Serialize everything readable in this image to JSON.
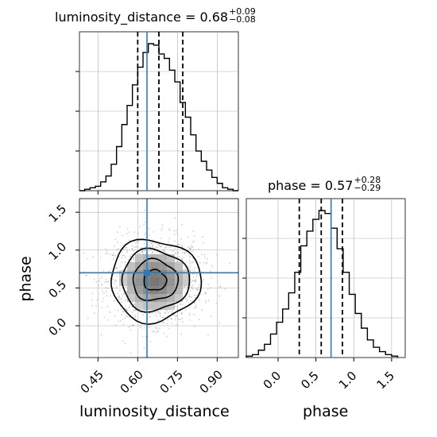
{
  "chart_data": [
    {
      "type": "histogram",
      "panel": "luminosity_distance marginal",
      "title": {
        "param": "luminosity_distance",
        "median": "0.68",
        "plus": "+0.09",
        "minus": "−0.08"
      },
      "bin_edges": [
        0.38,
        0.4,
        0.42,
        0.44,
        0.46,
        0.48,
        0.5,
        0.52,
        0.54,
        0.56,
        0.58,
        0.6,
        0.62,
        0.64,
        0.66,
        0.68,
        0.7,
        0.72,
        0.74,
        0.76,
        0.78,
        0.8,
        0.82,
        0.84,
        0.86,
        0.88,
        0.9,
        0.92,
        0.94,
        0.96,
        0.98
      ],
      "density": [
        0,
        0.01,
        0.02,
        0.03,
        0.06,
        0.1,
        0.18,
        0.3,
        0.45,
        0.58,
        0.72,
        0.84,
        0.94,
        1.0,
        0.99,
        0.93,
        0.9,
        0.82,
        0.74,
        0.6,
        0.5,
        0.38,
        0.27,
        0.2,
        0.14,
        0.09,
        0.05,
        0.02,
        0.01,
        0
      ],
      "xlim": [
        0.38,
        0.98
      ],
      "quantile_lines": [
        0.6,
        0.68,
        0.77
      ],
      "truth": 0.635,
      "grid": true
    },
    {
      "type": "histogram",
      "panel": "phase marginal",
      "title": {
        "param": "phase",
        "median": "0.57",
        "plus": "+0.28",
        "minus": "−0.29"
      },
      "bin_edges": [
        -0.42,
        -0.34,
        -0.26,
        -0.18,
        -0.1,
        -0.02,
        0.06,
        0.14,
        0.22,
        0.3,
        0.38,
        0.46,
        0.54,
        0.62,
        0.7,
        0.78,
        0.86,
        0.94,
        1.02,
        1.1,
        1.18,
        1.26,
        1.34,
        1.42,
        1.5,
        1.58
      ],
      "density": [
        0.01,
        0.02,
        0.05,
        0.09,
        0.16,
        0.24,
        0.33,
        0.44,
        0.58,
        0.76,
        0.86,
        0.94,
        1.0,
        0.98,
        0.88,
        0.74,
        0.58,
        0.43,
        0.3,
        0.2,
        0.12,
        0.07,
        0.04,
        0.02,
        0.01
      ],
      "xlim": [
        -0.42,
        1.68
      ],
      "quantile_lines": [
        0.28,
        0.57,
        0.85
      ],
      "truth": 0.7,
      "grid": true
    },
    {
      "type": "scatter",
      "panel": "joint density (luminosity_distance vs phase)",
      "xlabel": "luminosity_distance",
      "ylabel": "phase",
      "xlim": [
        0.38,
        0.98
      ],
      "ylim": [
        -0.42,
        1.68
      ],
      "xticks": [
        "0.45",
        "0.60",
        "0.75",
        "0.90"
      ],
      "xtick_values": [
        0.45,
        0.6,
        0.75,
        0.9
      ],
      "yticks": [
        "0.0",
        "0.5",
        "1.0",
        "1.5"
      ],
      "ytick_values": [
        0.0,
        0.5,
        1.0,
        1.5
      ],
      "distribution": {
        "mean": [
          0.665,
          0.6
        ],
        "std": [
          0.085,
          0.27
        ]
      },
      "contour_sigma_levels": [
        0.5,
        1.0,
        1.5,
        2.0
      ],
      "truth": [
        0.635,
        0.7
      ],
      "grid": true
    },
    {
      "type": "histogram",
      "panel": "phase axis",
      "xlabel": "phase",
      "xticks": [
        "0.0",
        "0.5",
        "1.0",
        "1.5"
      ],
      "xtick_values": [
        0.0,
        0.5,
        1.0,
        1.5
      ]
    }
  ],
  "colors": {
    "truth": "#2b7bba",
    "hist": "#000000",
    "grid": "#b0b0b0",
    "quantile": "#000000"
  }
}
